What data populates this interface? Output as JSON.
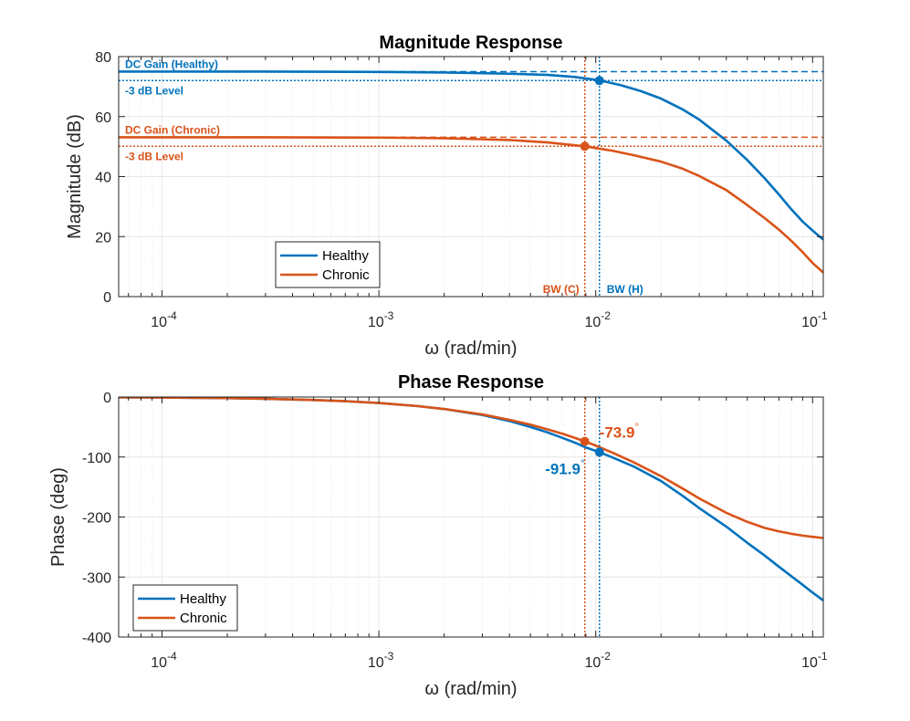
{
  "colors": {
    "healthy": "#0072BD",
    "chronic": "#D95319",
    "grid": "#e6e6e6",
    "axis": "#262626"
  },
  "chart_data": [
    {
      "type": "line",
      "title": "Magnitude Response",
      "xlabel": "ω (rad/min)",
      "ylabel": "Magnitude (dB)",
      "xscale": "log",
      "xlim": [
        6.31e-05,
        0.112
      ],
      "ylim": [
        0,
        80
      ],
      "yticks": [
        0,
        20,
        40,
        60,
        80
      ],
      "ytick_labels": [
        "0",
        "20",
        "40",
        "60",
        "80"
      ],
      "xticks": [
        0.0001,
        0.001,
        0.01,
        0.1
      ],
      "xtick_base": "10",
      "xtick_exps": [
        "-4",
        "-3",
        "-2",
        "-1"
      ],
      "grid": true,
      "legend": {
        "position": "lower-left",
        "entries": [
          "Healthy",
          "Chronic"
        ]
      },
      "series": [
        {
          "name": "Healthy",
          "x": [
            6.31e-05,
            0.0001,
            0.0003,
            0.001,
            0.002,
            0.004,
            0.006,
            0.008,
            0.0104,
            0.013,
            0.016,
            0.02,
            0.025,
            0.03,
            0.04,
            0.05,
            0.06,
            0.07,
            0.08,
            0.09,
            0.1,
            0.112
          ],
          "y": [
            75,
            75,
            75,
            74.9,
            74.7,
            74.3,
            73.9,
            73.2,
            72.1,
            70.5,
            68.6,
            66,
            62.5,
            59,
            52,
            45.5,
            39.5,
            34,
            29,
            25,
            22,
            19
          ]
        },
        {
          "name": "Chronic",
          "x": [
            6.31e-05,
            0.0001,
            0.0003,
            0.001,
            0.002,
            0.004,
            0.006,
            0.0089,
            0.012,
            0.015,
            0.02,
            0.025,
            0.03,
            0.04,
            0.05,
            0.06,
            0.07,
            0.08,
            0.09,
            0.1,
            0.112
          ],
          "y": [
            53.1,
            53.1,
            53.1,
            53,
            52.8,
            52.2,
            51.4,
            50.1,
            48.6,
            47.1,
            45,
            42.7,
            40.2,
            35.5,
            30.5,
            26.2,
            22.3,
            18.5,
            14.8,
            11.2,
            8
          ]
        }
      ],
      "reference_lines": [
        {
          "label": "DC Gain (Healthy)",
          "axis": "y",
          "value": 75,
          "series": "Healthy",
          "style": "dashed"
        },
        {
          "label": "-3 dB Level",
          "axis": "y",
          "value": 72,
          "series": "Healthy",
          "style": "dotted"
        },
        {
          "label": "DC Gain (Chronic)",
          "axis": "y",
          "value": 53.1,
          "series": "Chronic",
          "style": "dashed"
        },
        {
          "label": "-3 dB Level",
          "axis": "y",
          "value": 50.1,
          "series": "Chronic",
          "style": "dotted"
        },
        {
          "label": "BW (C)",
          "axis": "x",
          "value": 0.0089,
          "series": "Chronic",
          "style": "dotted"
        },
        {
          "label": "BW (H)",
          "axis": "x",
          "value": 0.0104,
          "series": "Healthy",
          "style": "dotted"
        }
      ],
      "markers": [
        {
          "series": "Healthy",
          "x": 0.0104,
          "y": 72
        },
        {
          "series": "Chronic",
          "x": 0.0089,
          "y": 50.1
        }
      ]
    },
    {
      "type": "line",
      "title": "Phase Response",
      "xlabel": "ω (rad/min)",
      "ylabel": "Phase (deg)",
      "xscale": "log",
      "xlim": [
        6.31e-05,
        0.112
      ],
      "ylim": [
        -400,
        0
      ],
      "yticks": [
        -400,
        -300,
        -200,
        -100,
        0
      ],
      "ytick_labels": [
        "-400",
        "-300",
        "-200",
        "-100",
        "0"
      ],
      "xticks": [
        0.0001,
        0.001,
        0.01,
        0.1
      ],
      "xtick_base": "10",
      "xtick_exps": [
        "-4",
        "-3",
        "-2",
        "-1"
      ],
      "grid": true,
      "legend": {
        "position": "lower-left",
        "entries": [
          "Healthy",
          "Chronic"
        ]
      },
      "series": [
        {
          "name": "Healthy",
          "x": [
            6.31e-05,
            0.0001,
            0.0002,
            0.0003,
            0.0005,
            0.0007,
            0.001,
            0.0015,
            0.002,
            0.003,
            0.004,
            0.005,
            0.006,
            0.007,
            0.008,
            0.009,
            0.0104,
            0.012,
            0.015,
            0.02,
            0.025,
            0.03,
            0.04,
            0.05,
            0.06,
            0.07,
            0.08,
            0.09,
            0.1,
            0.112
          ],
          "y": [
            -0.5,
            -0.8,
            -1.8,
            -3,
            -5,
            -7,
            -10,
            -15,
            -20,
            -30,
            -40,
            -50,
            -59,
            -68,
            -76,
            -84,
            -91.9,
            -101,
            -116,
            -140,
            -164,
            -185,
            -216,
            -243,
            -264,
            -283,
            -299,
            -313,
            -326,
            -339
          ]
        },
        {
          "name": "Chronic",
          "x": [
            6.31e-05,
            0.0001,
            0.0002,
            0.0003,
            0.0005,
            0.0007,
            0.001,
            0.0015,
            0.002,
            0.003,
            0.004,
            0.005,
            0.006,
            0.007,
            0.008,
            0.0089,
            0.01,
            0.012,
            0.015,
            0.02,
            0.025,
            0.03,
            0.04,
            0.05,
            0.06,
            0.07,
            0.08,
            0.09,
            0.1,
            0.112
          ],
          "y": [
            -0.5,
            -0.8,
            -1.8,
            -3,
            -5,
            -7,
            -10,
            -15,
            -20,
            -29,
            -38,
            -46,
            -54,
            -61,
            -68,
            -73.9,
            -81,
            -93,
            -109,
            -132,
            -152,
            -169,
            -193,
            -208,
            -218,
            -224,
            -228,
            -231,
            -233,
            -235
          ]
        }
      ],
      "reference_lines": [
        {
          "label": "",
          "axis": "x",
          "value": 0.0089,
          "series": "Chronic",
          "style": "dotted"
        },
        {
          "label": "",
          "axis": "x",
          "value": 0.0104,
          "series": "Healthy",
          "style": "dotted"
        }
      ],
      "markers": [
        {
          "series": "Healthy",
          "x": 0.0104,
          "y": -91.9,
          "label": "-91.9",
          "deg": "°"
        },
        {
          "series": "Chronic",
          "x": 0.0089,
          "y": -73.9,
          "label": "-73.9",
          "deg": "°"
        }
      ]
    }
  ]
}
